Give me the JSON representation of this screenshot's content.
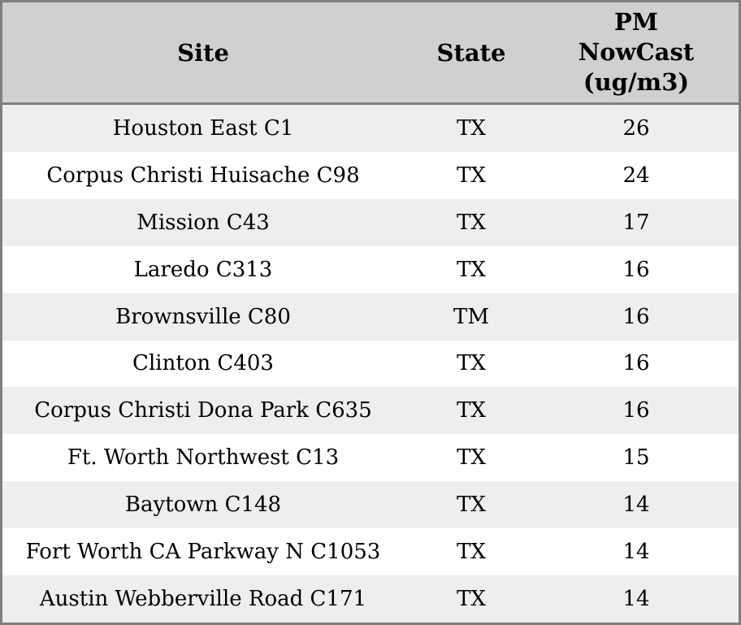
{
  "table": {
    "columns": [
      {
        "key": "site",
        "label": "Site"
      },
      {
        "key": "state",
        "label": "State"
      },
      {
        "key": "pm_nowcast",
        "label": "PM NowCast (ug/m3)"
      }
    ],
    "pm_header_lines": [
      "PM",
      "NowCast",
      "(ug/m3)"
    ],
    "rows": [
      {
        "site": "Houston East C1",
        "state": "TX",
        "pm_nowcast": "26"
      },
      {
        "site": "Corpus Christi Huisache C98",
        "state": "TX",
        "pm_nowcast": "24"
      },
      {
        "site": "Mission C43",
        "state": "TX",
        "pm_nowcast": "17"
      },
      {
        "site": "Laredo C313",
        "state": "TX",
        "pm_nowcast": "16"
      },
      {
        "site": "Brownsville C80",
        "state": "TM",
        "pm_nowcast": "16"
      },
      {
        "site": "Clinton C403",
        "state": "TX",
        "pm_nowcast": "16"
      },
      {
        "site": "Corpus Christi Dona Park C635",
        "state": "TX",
        "pm_nowcast": "16"
      },
      {
        "site": "Ft. Worth Northwest C13",
        "state": "TX",
        "pm_nowcast": "15"
      },
      {
        "site": "Baytown C148",
        "state": "TX",
        "pm_nowcast": "14"
      },
      {
        "site": "Fort Worth CA Parkway N C1053",
        "state": "TX",
        "pm_nowcast": "14"
      },
      {
        "site": "Austin Webberville Road C171",
        "state": "TX",
        "pm_nowcast": "14"
      }
    ]
  },
  "colors": {
    "header_bg": "#d0d0d0",
    "row_alt_bg": "#eeeeee",
    "row_bg": "#ffffff",
    "border": "#7f7f7f",
    "text": "#000000"
  }
}
